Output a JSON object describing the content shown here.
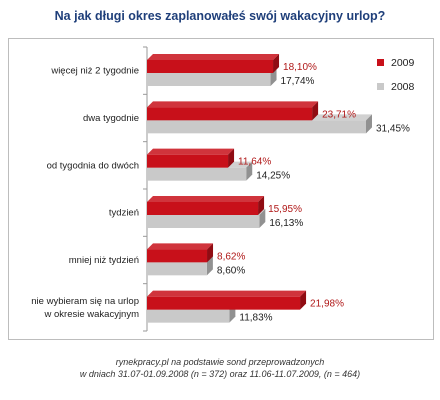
{
  "title": "Na jak długi okres zaplanowałeś swój wakacyjny urlop?",
  "source": {
    "line1": "rynekpracy.pl na podstawie  sond przeprowadzonych",
    "line2": "w dniach 31.07-01.09.2008 (n = 372) oraz 11.06-11.07.2009, (n = 464)"
  },
  "colors": {
    "s2009": "#c8101a",
    "s2008": "#c9c9c9"
  },
  "chart_data": {
    "type": "bar",
    "orientation": "horizontal",
    "categories": [
      [
        "więcej niż 2 tygodnie"
      ],
      [
        "dwa tygodnie"
      ],
      [
        "od tygodnia do dwóch"
      ],
      [
        "tydzień"
      ],
      [
        "mniej niż tydzień"
      ],
      [
        "nie wybieram się na urlop",
        "w okresie wakacyjnym"
      ]
    ],
    "series": [
      {
        "name": "2009",
        "values": [
          18.1,
          23.71,
          11.64,
          15.95,
          8.62,
          21.98
        ],
        "labels": [
          "18,10%",
          "23,71%",
          "11,64%",
          "15,95%",
          "8,62%",
          "21,98%"
        ]
      },
      {
        "name": "2008",
        "values": [
          17.74,
          31.45,
          14.25,
          16.13,
          8.6,
          11.83
        ],
        "labels": [
          "17,74%",
          "31,45%",
          "14,25%",
          "16,13%",
          "8,60%",
          "11,83%"
        ]
      }
    ],
    "xlim": [
      0,
      35
    ],
    "legend_position": "top-right",
    "grid": false
  }
}
